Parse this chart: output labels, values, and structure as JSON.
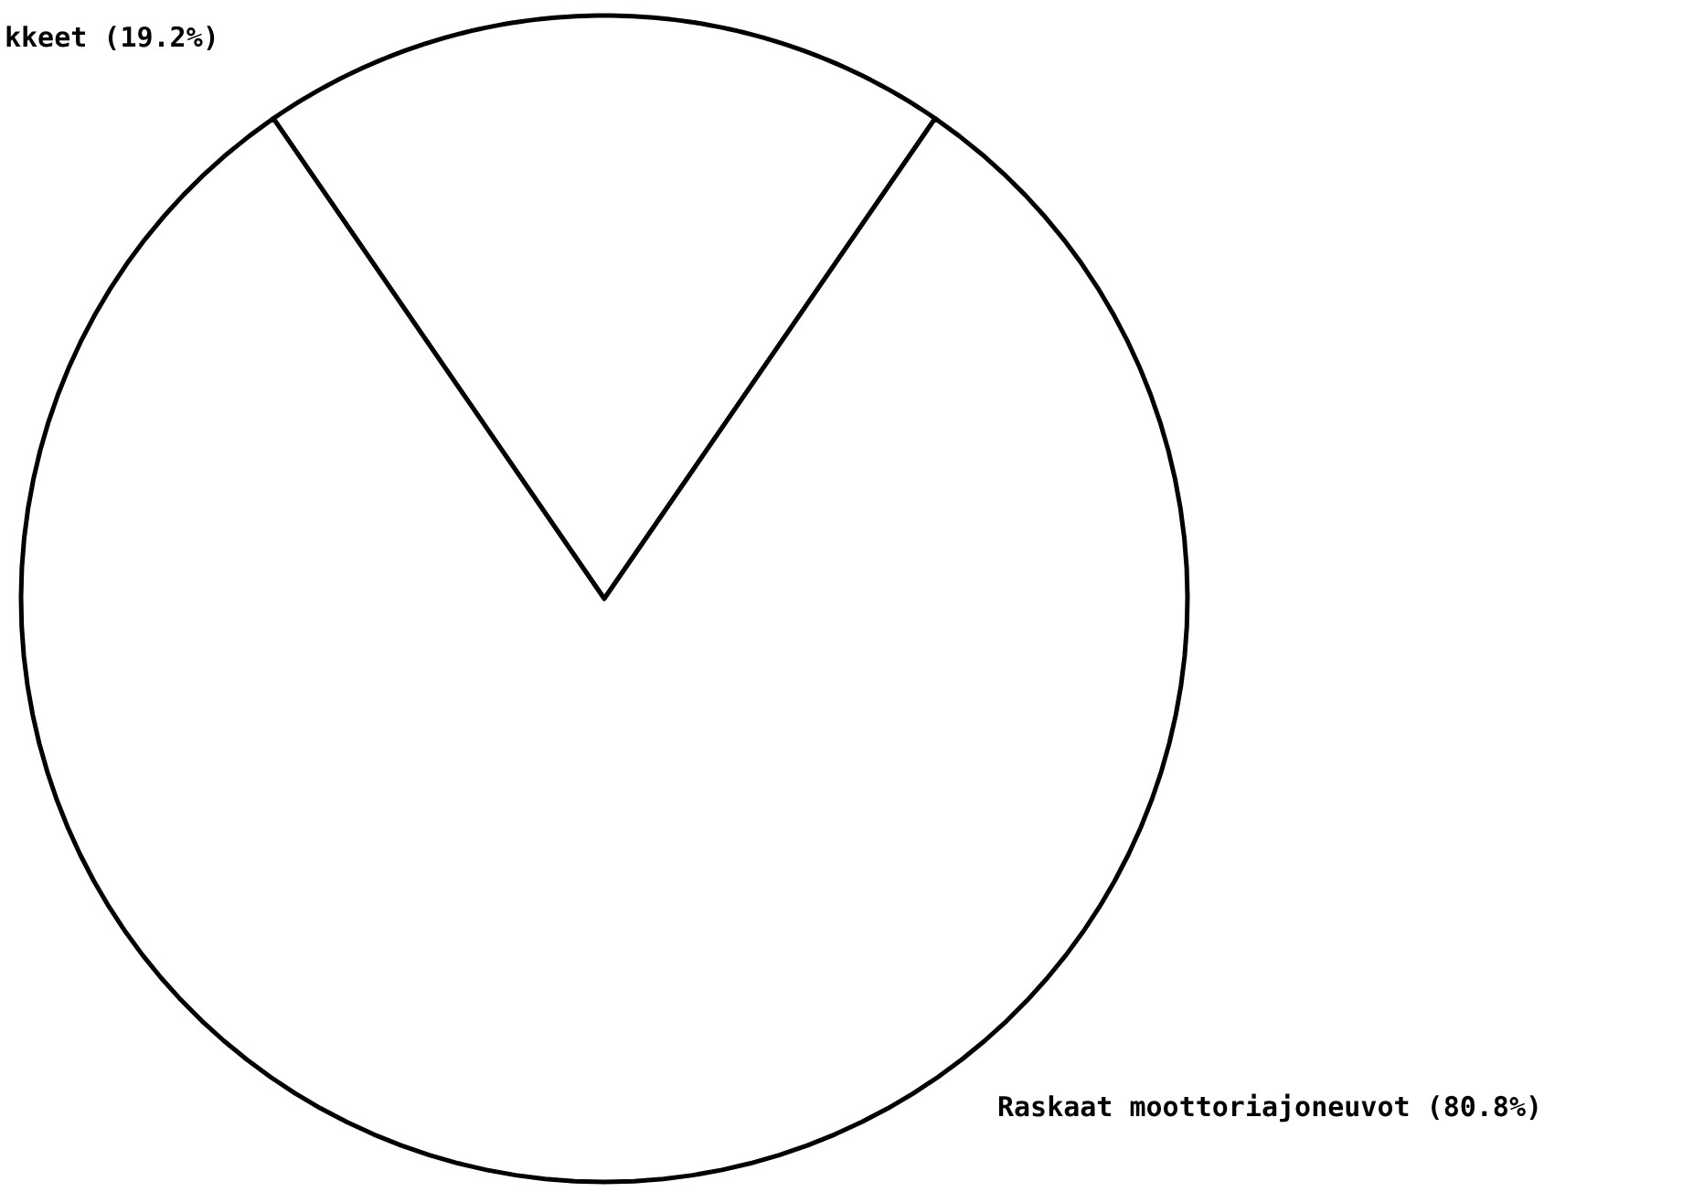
{
  "chart_data": {
    "type": "pie",
    "categories": [
      "kkeet",
      "Raskaat moottoriajoneuvot"
    ],
    "values": [
      19.2,
      80.8
    ],
    "value_labels": [
      "(19.2%)",
      "(80.8%)"
    ],
    "colors": [
      "#ffffff",
      "#ffffff"
    ]
  }
}
